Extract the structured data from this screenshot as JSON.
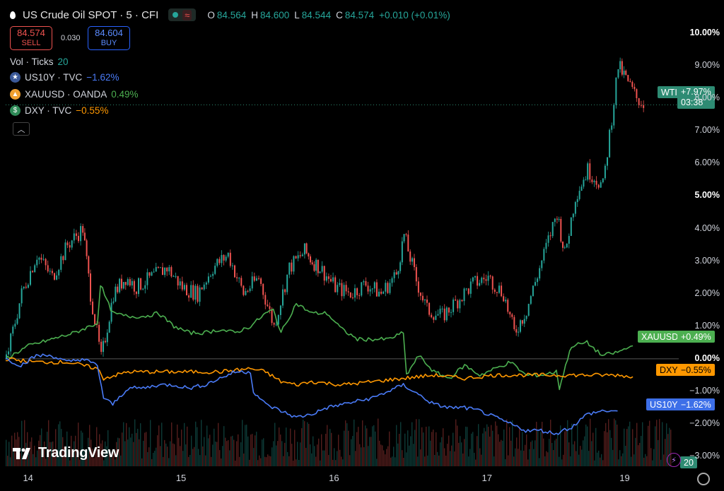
{
  "header": {
    "title": "US Crude Oil SPOT · 5 · CFI",
    "o_label": "O",
    "o": "84.564",
    "h_label": "H",
    "h": "84.600",
    "l_label": "L",
    "l": "84.544",
    "c_label": "C",
    "c": "84.574",
    "change": "+0.010 (+0.01%)"
  },
  "trade": {
    "sell_price": "84.574",
    "sell_label": "SELL",
    "spread": "0.030",
    "buy_price": "84.604",
    "buy_label": "BUY"
  },
  "volume": {
    "label": "Vol · Ticks",
    "value": "20"
  },
  "legend": [
    {
      "name": "US10Y · TVC",
      "value": "−1.62%",
      "color": "#4a7bf7",
      "icon": "us-flag-icon"
    },
    {
      "name": "XAUUSD · OANDA",
      "value": "0.49%",
      "color": "#4caf50",
      "icon": "gold-icon"
    },
    {
      "name": "DXY · TVC",
      "value": "−0.55%",
      "color": "#ff9800",
      "icon": "dollar-icon"
    }
  ],
  "brand": "TradingView",
  "price_tags": {
    "wti_name": "WTI",
    "wti_value": "+7.97%",
    "wti_time": "03:38",
    "xau_name": "XAUUSD",
    "xau_value": "+0.49%",
    "dxy_name": "DXY",
    "dxy_value": "−0.55%",
    "us10y_name": "US10Y",
    "us10y_value": "−1.62%",
    "vol_value": "20"
  },
  "chart_data": {
    "type": "line",
    "y_unit": "%",
    "ylim": [
      -3.3,
      10.5
    ],
    "y_ticks": [
      "10.00%",
      "9.00%",
      "8.00%",
      "7.00%",
      "6.00%",
      "5.00%",
      "4.00%",
      "3.00%",
      "2.00%",
      "1.00%",
      "0.00%",
      "−1.00%",
      "−2.00%",
      "−3.00%"
    ],
    "x_ticks": [
      "14",
      "15",
      "16",
      "17",
      "19"
    ],
    "x_tick_pos": [
      0.15,
      1.15,
      2.15,
      3.15,
      4.05
    ],
    "xlim": [
      0,
      4.4
    ],
    "series": [
      {
        "name": "WTI",
        "kind": "candles",
        "color_up": "#26a69a",
        "color_down": "#ef5350",
        "x": [
          0,
          0.1,
          0.2,
          0.3,
          0.4,
          0.5,
          0.55,
          0.62,
          0.7,
          0.78,
          0.85,
          0.95,
          1.05,
          1.15,
          1.25,
          1.35,
          1.45,
          1.55,
          1.65,
          1.75,
          1.85,
          1.95,
          2.0,
          2.05,
          2.15,
          2.25,
          2.35,
          2.45,
          2.55,
          2.6,
          2.68,
          2.75,
          2.85,
          2.95,
          3.05,
          3.15,
          3.25,
          3.32,
          3.4,
          3.5,
          3.6,
          3.65,
          3.72,
          3.8,
          3.9,
          4.0,
          4.05,
          4.12,
          4.18
        ],
        "y": [
          0,
          2,
          3.2,
          2.5,
          3.5,
          4,
          2,
          0,
          2,
          2.5,
          2.2,
          2.5,
          2.8,
          2.2,
          2.0,
          2.8,
          3.2,
          2.0,
          2.5,
          1.0,
          2.8,
          3.3,
          3.0,
          2.8,
          2.2,
          2.0,
          2.3,
          2.0,
          2.6,
          3.8,
          2.4,
          1.5,
          1.3,
          1.8,
          2.3,
          2.5,
          2.0,
          0.8,
          1.5,
          3.0,
          4.5,
          3.2,
          5.0,
          5.8,
          5.3,
          9.0,
          8.6,
          8.0,
          7.8
        ]
      },
      {
        "name": "XAUUSD",
        "color": "#4caf50",
        "x": [
          0,
          0.15,
          0.3,
          0.45,
          0.6,
          0.62,
          0.66,
          0.7,
          0.8,
          0.9,
          1.0,
          1.1,
          1.2,
          1.3,
          1.4,
          1.5,
          1.6,
          1.7,
          1.75,
          1.8,
          1.9,
          2.0,
          2.1,
          2.2,
          2.3,
          2.4,
          2.5,
          2.6,
          2.62,
          2.7,
          2.8,
          2.9,
          3.0,
          3.1,
          3.2,
          3.3,
          3.4,
          3.5,
          3.6,
          3.62,
          3.66,
          3.7,
          3.8,
          3.9,
          4.0,
          4.1
        ],
        "y": [
          0,
          0.4,
          0.6,
          0.8,
          1.1,
          2.3,
          1.8,
          1.4,
          1.3,
          1.3,
          1.4,
          1.0,
          0.8,
          0.8,
          0.9,
          0.8,
          1.0,
          1.4,
          1.5,
          0.8,
          1.7,
          1.4,
          1.4,
          0.9,
          0.6,
          0.6,
          0.6,
          0.8,
          -0.5,
          0.1,
          -0.4,
          -0.6,
          -0.2,
          -0.5,
          -0.3,
          -0.1,
          -0.5,
          -0.5,
          -0.4,
          -0.9,
          -0.2,
          0.4,
          0.5,
          0.1,
          0.2,
          0.4
        ]
      },
      {
        "name": "DXY",
        "color": "#ff9800",
        "x": [
          0,
          0.2,
          0.4,
          0.6,
          0.64,
          0.8,
          1.0,
          1.2,
          1.4,
          1.6,
          1.7,
          1.8,
          1.9,
          2.0,
          2.2,
          2.4,
          2.6,
          2.8,
          3.0,
          3.2,
          3.4,
          3.6,
          3.8,
          4.0,
          4.1
        ],
        "y": [
          0,
          -0.1,
          -0.1,
          -0.3,
          -0.6,
          -0.4,
          -0.4,
          -0.4,
          -0.4,
          -0.3,
          -0.4,
          -0.7,
          -0.8,
          -0.7,
          -0.8,
          -0.7,
          -0.6,
          -0.5,
          -0.6,
          -0.5,
          -0.5,
          -0.5,
          -0.5,
          -0.5,
          -0.55
        ]
      },
      {
        "name": "US10Y",
        "color": "#4a7bf7",
        "x": [
          0,
          0.1,
          0.2,
          0.3,
          0.4,
          0.5,
          0.6,
          0.64,
          0.7,
          0.8,
          0.9,
          1.0,
          1.1,
          1.2,
          1.3,
          1.4,
          1.5,
          1.6,
          1.62,
          1.7,
          1.8,
          1.9,
          2.0,
          2.1,
          2.2,
          2.3,
          2.4,
          2.5,
          2.6,
          2.7,
          2.8,
          2.9,
          3.0,
          3.1,
          3.2,
          3.3,
          3.4,
          3.5,
          3.6,
          3.64,
          3.7,
          3.8,
          3.9,
          4.0
        ],
        "y": [
          0,
          -0.2,
          0.1,
          0.1,
          -0.1,
          0.0,
          -0.2,
          -1.2,
          -1.4,
          -0.9,
          -0.9,
          -0.8,
          -0.8,
          -0.9,
          -0.8,
          -0.6,
          -0.4,
          -0.4,
          -1.0,
          -1.4,
          -1.6,
          -1.8,
          -1.7,
          -1.5,
          -1.4,
          -1.3,
          -1.2,
          -1.0,
          -0.8,
          -1.1,
          -1.4,
          -1.5,
          -1.5,
          -1.6,
          -1.8,
          -2.0,
          -2.2,
          -2.2,
          -2.3,
          -2.2,
          -2.1,
          -1.7,
          -1.6,
          -1.6
        ]
      }
    ]
  }
}
